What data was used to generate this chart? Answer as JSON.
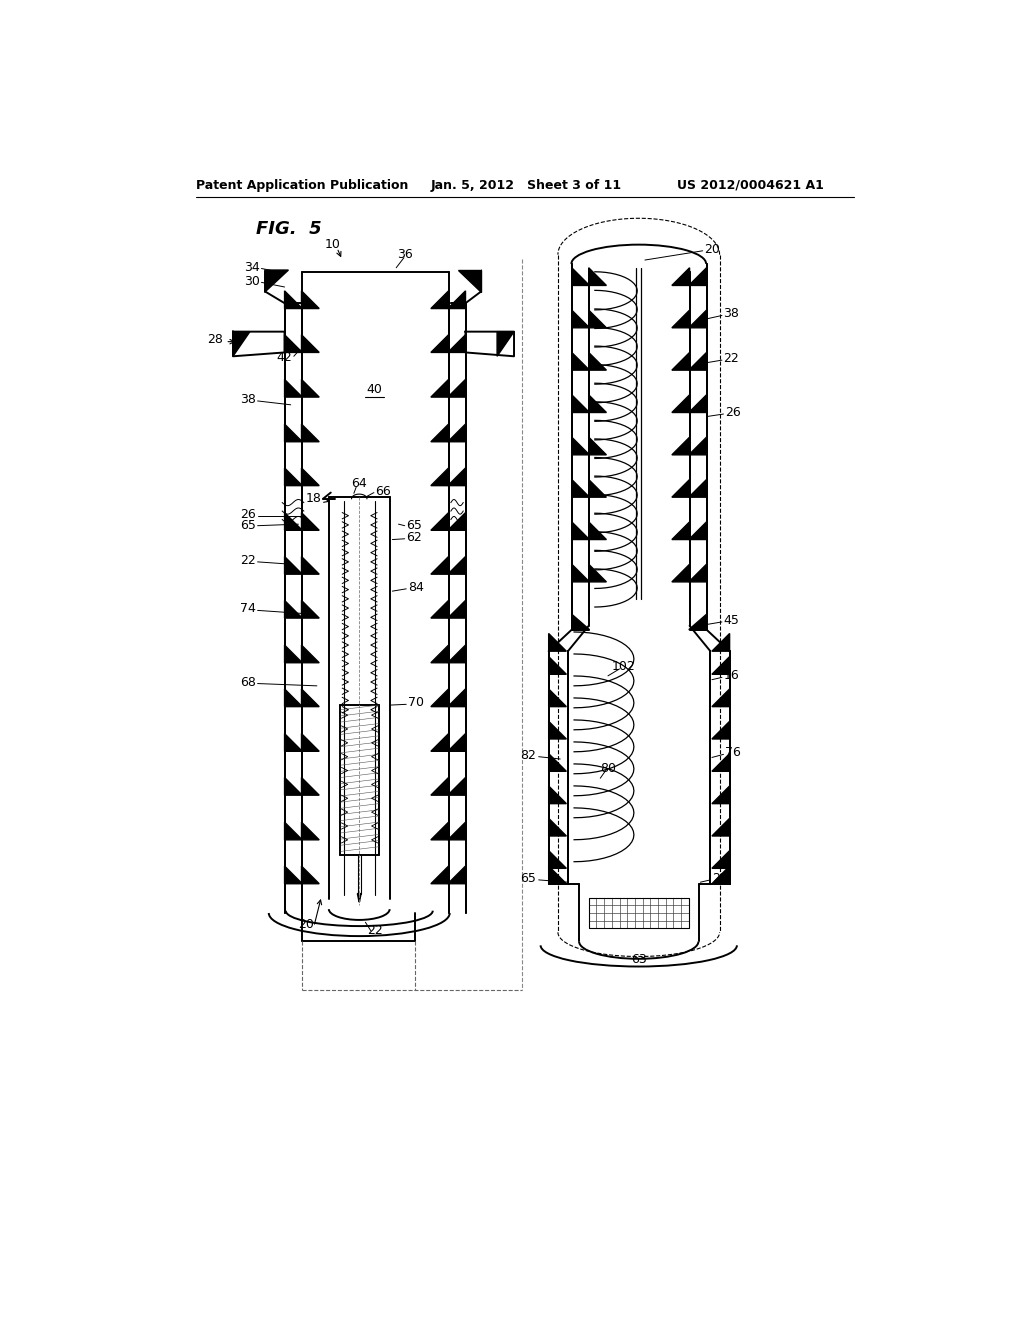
{
  "bg_color": "#ffffff",
  "header_left": "Patent Application Publication",
  "header_mid": "Jan. 5, 2012   Sheet 3 of 11",
  "header_right": "US 2012/0004621 A1",
  "fig_label": "FIG.  5"
}
